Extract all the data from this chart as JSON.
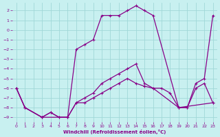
{
  "xlabel": "Windchill (Refroidissement éolien,°C)",
  "bg_color": "#c8f0f0",
  "line_color": "#880088",
  "grid_color": "#a0d8d8",
  "xlim": [
    -0.5,
    23.5
  ],
  "ylim": [
    -9.5,
    2.8
  ],
  "xticks": [
    0,
    1,
    2,
    3,
    4,
    5,
    6,
    7,
    8,
    9,
    10,
    11,
    12,
    13,
    14,
    15,
    16,
    17,
    18,
    19,
    20,
    21,
    22,
    23
  ],
  "yticks": [
    -9,
    -8,
    -7,
    -6,
    -5,
    -4,
    -3,
    -2,
    -1,
    0,
    1,
    2
  ],
  "line1_x": [
    0,
    1,
    3,
    4,
    5,
    6,
    7,
    8,
    9,
    10,
    11,
    12,
    13,
    14,
    15,
    16,
    19,
    20,
    21,
    22,
    23
  ],
  "line1_y": [
    -6,
    -8,
    -9,
    -8.5,
    -9,
    -9,
    -2,
    -1.5,
    -1,
    1.5,
    1.5,
    1.5,
    2,
    2.5,
    2,
    1.5,
    -8,
    -8,
    -5.5,
    -5.0,
    1.5
  ],
  "line2_x": [
    0,
    1,
    3,
    4,
    5,
    6,
    7,
    8,
    9,
    10,
    11,
    12,
    13,
    14,
    15,
    16,
    19,
    20,
    21,
    22,
    23
  ],
  "line2_y": [
    -6,
    -8,
    -9,
    -8.5,
    -9,
    -9,
    -7.5,
    -7,
    -6.5,
    -5.5,
    -5,
    -4.5,
    -4,
    -3.5,
    -5.5,
    -6,
    -8,
    -8,
    -6,
    -5.5,
    -7.5
  ],
  "line3_x": [
    0,
    1,
    3,
    6,
    7,
    8,
    9,
    10,
    11,
    12,
    13,
    14,
    15,
    16,
    17,
    18,
    19,
    23
  ],
  "line3_y": [
    -6,
    -8,
    -9,
    -9,
    -7.5,
    -7.5,
    -7,
    -6.5,
    -6,
    -5.5,
    -5,
    -5.5,
    -5.8,
    -6,
    -6,
    -6.5,
    -8,
    -7.5
  ]
}
